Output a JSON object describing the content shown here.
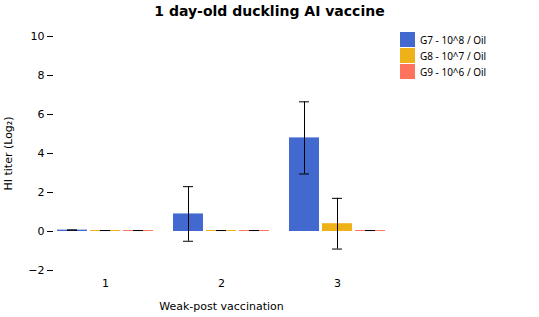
{
  "chart_data": {
    "type": "bar",
    "title": "1 day-old duckling AI vaccine",
    "xlabel": "Weak-post vaccination",
    "ylabel": "HI titer (Log₂)",
    "categories": [
      "1",
      "2",
      "3"
    ],
    "series": [
      {
        "name": "G7 - 10^8 / Oil",
        "values": [
          0.07,
          0.9,
          4.8
        ],
        "errors": [
          0.0,
          1.4,
          1.85
        ]
      },
      {
        "name": "G8 - 10^7 / Oil",
        "values": [
          0.05,
          0.05,
          0.4
        ],
        "errors": [
          0.0,
          0.0,
          1.3
        ]
      },
      {
        "name": "G9 - 10^6 / Oil",
        "values": [
          0.05,
          0.05,
          0.05
        ],
        "errors": [
          0.0,
          0.0,
          0.0
        ]
      }
    ],
    "ylim": [
      -2,
      10
    ],
    "yticks": [
      -2,
      0,
      2,
      4,
      6,
      8,
      10
    ],
    "grid": false,
    "legend": "upper right"
  }
}
